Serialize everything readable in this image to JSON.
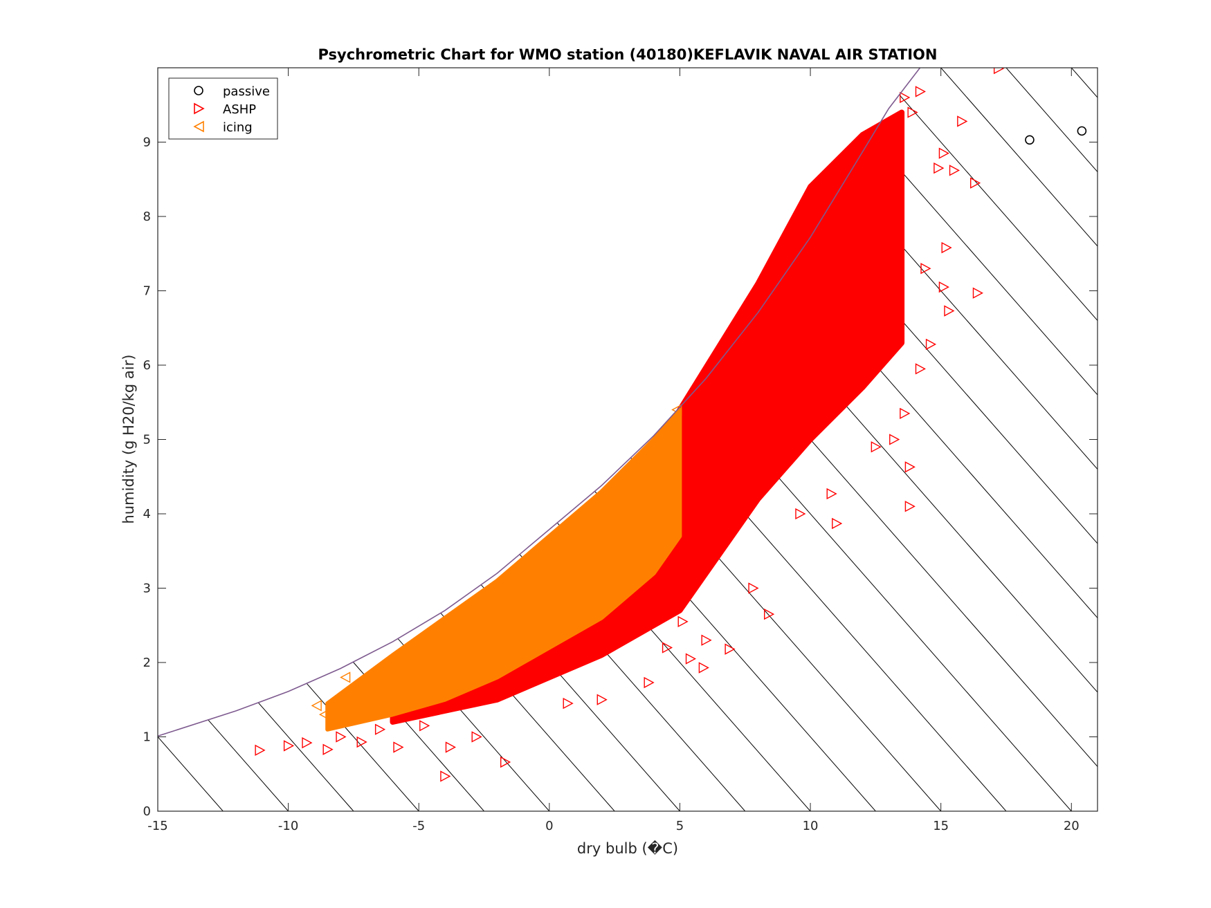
{
  "chart_data": {
    "type": "scatter",
    "title": "Psychrometric Chart for WMO station (40180)KEFLAVIK NAVAL AIR STATION",
    "xlabel": "dry bulb (�C)",
    "ylabel": "humidity (g H20/kg air)",
    "xlim": [
      -15,
      21
    ],
    "ylim": [
      0,
      10
    ],
    "x_ticks": [
      -15,
      -10,
      -5,
      0,
      5,
      10,
      15,
      20
    ],
    "y_ticks": [
      0,
      1,
      2,
      3,
      4,
      5,
      6,
      7,
      8,
      9
    ],
    "grid": false,
    "legend_position": "top-left",
    "saturation_curve": {
      "color": "#7e5a8f",
      "x": [
        -15,
        -12,
        -10,
        -8,
        -6,
        -4,
        -2,
        0,
        2,
        4,
        6,
        8,
        10,
        12,
        13,
        14.2
      ],
      "y": [
        1.01,
        1.35,
        1.61,
        1.92,
        2.28,
        2.7,
        3.2,
        3.79,
        4.38,
        5.05,
        5.82,
        6.71,
        7.72,
        8.87,
        9.45,
        10.0
      ]
    },
    "enthalpy_lines": {
      "color": "#000000",
      "slope": -0.4,
      "x_at_zero_humidity": [
        -12.5,
        -10,
        -7.5,
        -5,
        -2.5,
        0,
        2.5,
        5,
        7.5,
        10,
        12.5,
        15,
        17.5,
        20,
        22.5,
        25,
        27.5,
        30,
        32.5,
        35,
        37.5,
        40,
        42.5,
        45
      ]
    },
    "series": [
      {
        "name": "passive",
        "marker": "circle",
        "color": "#000000",
        "points": [
          [
            18.4,
            9.03
          ],
          [
            20.4,
            9.15
          ]
        ]
      },
      {
        "name": "ASHP",
        "marker": "triangle-right",
        "color": "#ff0000",
        "region": {
          "x_min": -11.0,
          "x_max": 17.2,
          "dense_band": [
            [
              -6,
              1.2,
              1.6
            ],
            [
              -2,
              1.5,
              2.7
            ],
            [
              2,
              2.1,
              3.4
            ],
            [
              5,
              2.7,
              5.4
            ],
            [
              8,
              4.2,
              7.1
            ],
            [
              10,
              5.0,
              8.4
            ],
            [
              12,
              5.7,
              9.1
            ],
            [
              13.5,
              6.3,
              9.4
            ]
          ]
        },
        "points": [
          [
            -11.1,
            0.82
          ],
          [
            -10.0,
            0.88
          ],
          [
            -9.3,
            0.92
          ],
          [
            -8.5,
            0.83
          ],
          [
            -8.0,
            1.0
          ],
          [
            -7.2,
            0.93
          ],
          [
            -5.8,
            0.86
          ],
          [
            -4.0,
            0.47
          ],
          [
            -3.8,
            0.86
          ],
          [
            -2.8,
            1.0
          ],
          [
            -1.7,
            0.66
          ],
          [
            -4.8,
            1.15
          ],
          [
            -6.5,
            1.1
          ],
          [
            0.7,
            1.45
          ],
          [
            2.0,
            1.5
          ],
          [
            3.8,
            1.73
          ],
          [
            4.5,
            2.2
          ],
          [
            5.1,
            2.55
          ],
          [
            5.4,
            2.05
          ],
          [
            5.9,
            1.93
          ],
          [
            6.0,
            2.3
          ],
          [
            6.9,
            2.18
          ],
          [
            7.8,
            3.0
          ],
          [
            8.4,
            2.65
          ],
          [
            9.6,
            4.0
          ],
          [
            10.8,
            4.27
          ],
          [
            11.0,
            3.87
          ],
          [
            12.5,
            4.9
          ],
          [
            13.2,
            5.0
          ],
          [
            13.6,
            5.35
          ],
          [
            13.8,
            4.63
          ],
          [
            13.8,
            4.1
          ],
          [
            14.2,
            5.95
          ],
          [
            14.6,
            6.28
          ],
          [
            15.1,
            7.05
          ],
          [
            15.3,
            6.73
          ],
          [
            16.4,
            6.97
          ],
          [
            16.3,
            8.45
          ],
          [
            15.5,
            8.62
          ],
          [
            15.8,
            9.28
          ],
          [
            15.1,
            8.85
          ],
          [
            14.9,
            8.65
          ],
          [
            14.2,
            9.68
          ],
          [
            13.6,
            9.6
          ],
          [
            17.2,
            9.99
          ],
          [
            13.9,
            9.4
          ],
          [
            14.4,
            7.3
          ],
          [
            15.2,
            7.58
          ]
        ]
      },
      {
        "name": "icing",
        "marker": "triangle-left",
        "color": "#ff8000",
        "region": {
          "x_min": -9.0,
          "x_max": 5.0,
          "dense_band": [
            [
              -8.5,
              1.1,
              1.45
            ],
            [
              -6,
              1.3,
              2.1
            ],
            [
              -4,
              1.5,
              2.6
            ],
            [
              -2,
              1.8,
              3.1
            ],
            [
              0,
              2.2,
              3.7
            ],
            [
              2,
              2.6,
              4.3
            ],
            [
              4,
              3.2,
              5.0
            ],
            [
              5,
              3.7,
              5.4
            ]
          ]
        },
        "points": [
          [
            -8.9,
            1.42
          ],
          [
            -8.6,
            1.3
          ],
          [
            -8.3,
            1.2
          ],
          [
            -7.9,
            1.38
          ],
          [
            -7.8,
            1.8
          ],
          [
            -7.2,
            1.45
          ],
          [
            -6.6,
            1.55
          ],
          [
            -5.8,
            1.75
          ],
          [
            -4.5,
            2.25
          ],
          [
            -3.5,
            2.5
          ],
          [
            -2.8,
            2.62
          ],
          [
            -1.5,
            3.05
          ],
          [
            -0.6,
            3.2
          ],
          [
            0.3,
            3.6
          ],
          [
            1.3,
            3.95
          ],
          [
            2.0,
            4.25
          ],
          [
            2.8,
            4.4
          ],
          [
            3.5,
            4.7
          ],
          [
            4.5,
            5.15
          ],
          [
            4.9,
            5.4
          ]
        ]
      }
    ]
  }
}
